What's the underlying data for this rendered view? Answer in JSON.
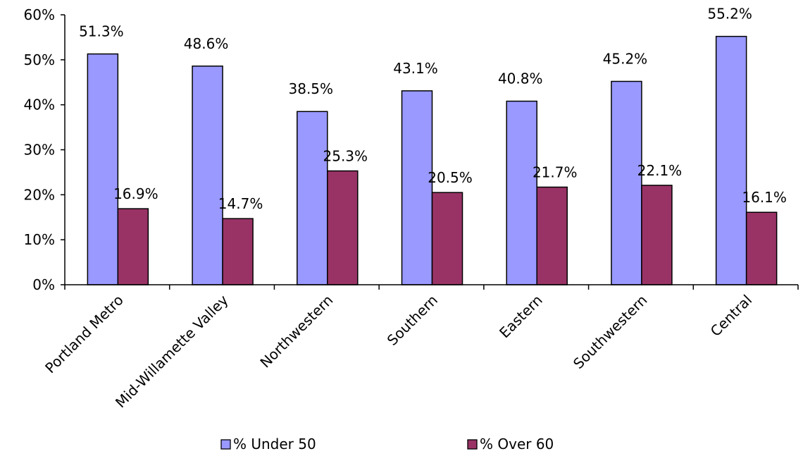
{
  "chart_data": {
    "type": "bar",
    "title": "",
    "xlabel": "",
    "ylabel": "",
    "categories": [
      "Portland Metro",
      "Mid-Willamette Valley",
      "Northwestern",
      "Southern",
      "Eastern",
      "Southwestern",
      "Central"
    ],
    "series": [
      {
        "name": "% Under 50",
        "color": "#9999ff",
        "values": [
          51.3,
          48.6,
          38.5,
          43.1,
          40.8,
          45.2,
          55.2
        ]
      },
      {
        "name": "% Over 60",
        "color": "#993366",
        "values": [
          16.9,
          14.7,
          25.3,
          20.5,
          21.7,
          22.1,
          16.1
        ]
      }
    ],
    "ylim": [
      0,
      60
    ],
    "yticks": [
      0,
      10,
      20,
      30,
      40,
      50,
      60
    ],
    "y_tick_format": "percent",
    "data_label_format": "percent_1dp",
    "grid": false,
    "legend_position": "bottom"
  }
}
